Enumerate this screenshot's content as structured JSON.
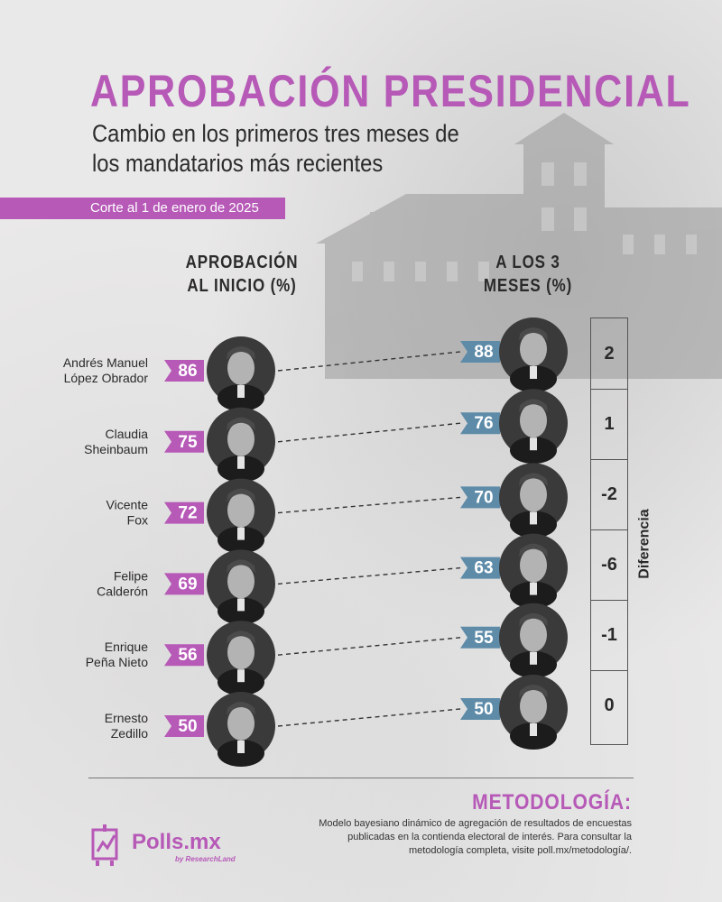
{
  "header": {
    "title": "APROBACIÓN PRESIDENCIAL",
    "subtitle_line1": "Cambio en los primeros tres meses de",
    "subtitle_line2": "los mandatarios más recientes",
    "date_note": "Corte al 1 de enero de 2025"
  },
  "colors": {
    "accent": "#b659b7",
    "end_tag": "#5d8ba8",
    "text": "#2a2a2a",
    "background": "#eae9e9"
  },
  "chart_data": {
    "type": "dot-slope",
    "start_header_line1": "APROBACIÓN",
    "start_header_line2": "AL INICIO (%)",
    "end_header_line1": "A LOS 3",
    "end_header_line2": "MESES (%)",
    "diff_label": "Diferencia",
    "presidents": [
      {
        "name_line1": "Andrés Manuel",
        "name_line2": "López Obrador",
        "start": 86,
        "end": 88,
        "diff": "2"
      },
      {
        "name_line1": "Claudia",
        "name_line2": "Sheinbaum",
        "start": 75,
        "end": 76,
        "diff": "1"
      },
      {
        "name_line1": "Vicente",
        "name_line2": "Fox",
        "start": 72,
        "end": 70,
        "diff": "-2"
      },
      {
        "name_line1": "Felipe",
        "name_line2": "Calderón",
        "start": 69,
        "end": 63,
        "diff": "-6"
      },
      {
        "name_line1": "Enrique",
        "name_line2": "Peña Nieto",
        "start": 56,
        "end": 55,
        "diff": "-1"
      },
      {
        "name_line1": "Ernesto",
        "name_line2": "Zedillo",
        "start": 50,
        "end": 50,
        "diff": "0"
      }
    ]
  },
  "footer": {
    "methodology_title": "METODOLOGÍA:",
    "methodology_text": "Modelo bayesiano dinámico de agregación de resultados de encuestas publicadas en la contienda electoral de interés. Para consultar la metodología completa, visite poll.mx/metodología/.",
    "brand": "Polls.mx",
    "brand_sub": "by ResearchLand",
    "logo_icon": "polls-chart-icon"
  }
}
